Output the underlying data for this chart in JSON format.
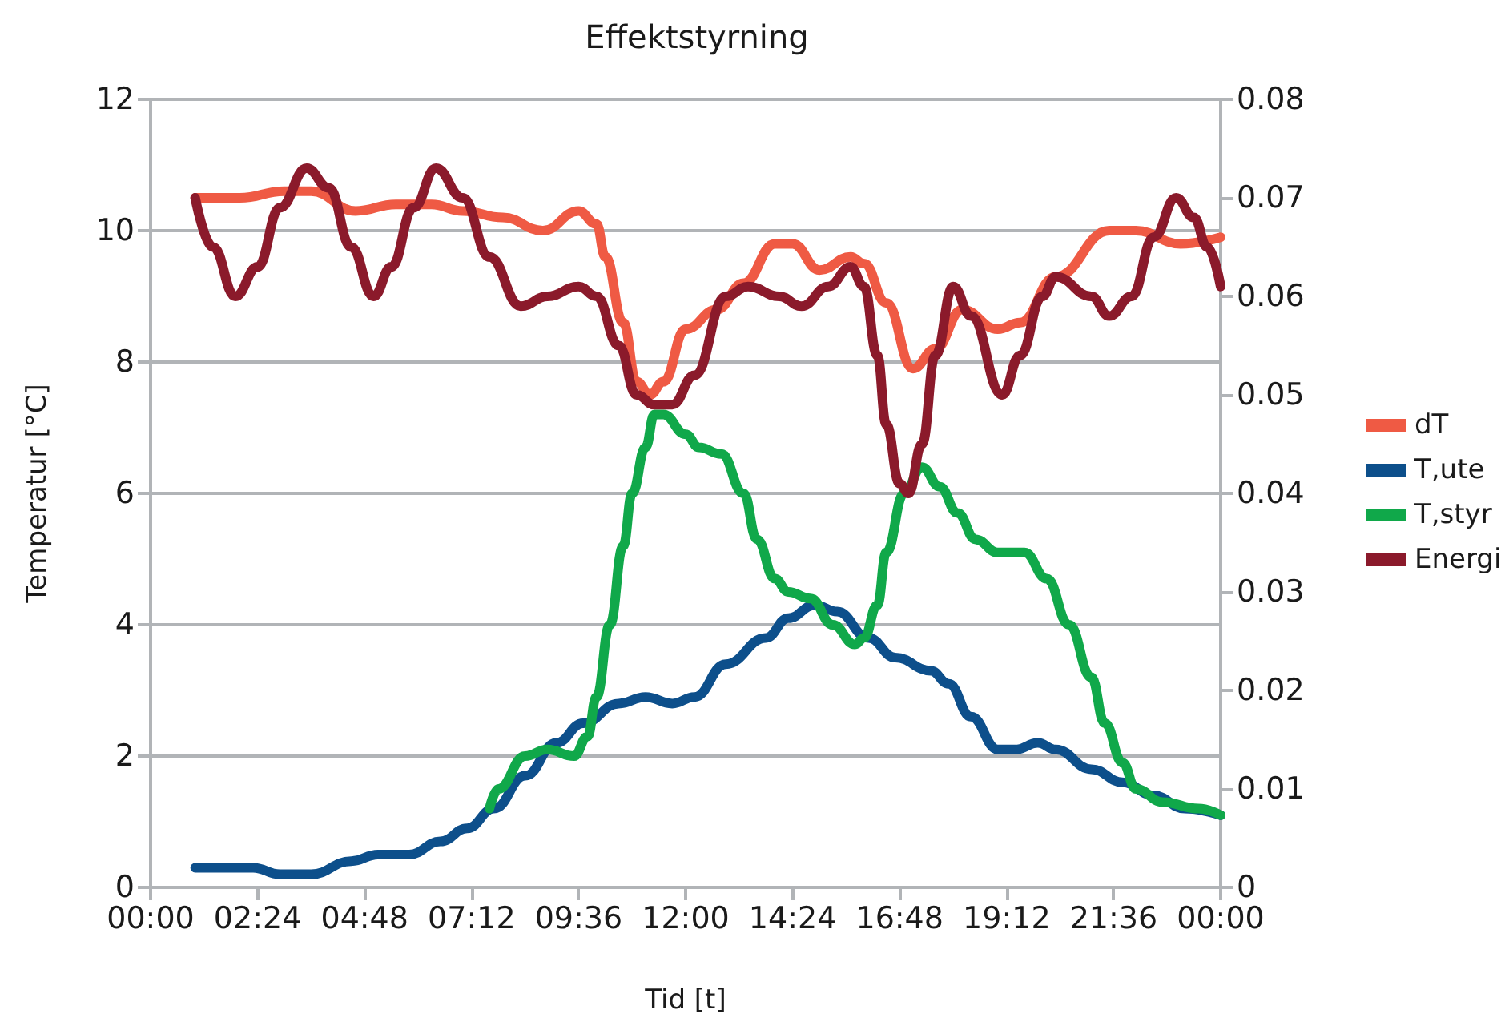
{
  "chart_data": {
    "type": "line",
    "title": "Effektstyrning",
    "xlabel": "Tid [t]",
    "ylabel": "Temperatur [°C]",
    "xlim": [
      0,
      24
    ],
    "xticks": [
      {
        "value": 0,
        "label": "00:00"
      },
      {
        "value": 2.4,
        "label": "02:24"
      },
      {
        "value": 4.8,
        "label": "04:48"
      },
      {
        "value": 7.2,
        "label": "07:12"
      },
      {
        "value": 9.6,
        "label": "09:36"
      },
      {
        "value": 12,
        "label": "12:00"
      },
      {
        "value": 14.4,
        "label": "14:24"
      },
      {
        "value": 16.8,
        "label": "16:48"
      },
      {
        "value": 19.2,
        "label": "19:12"
      },
      {
        "value": 21.6,
        "label": "21:36"
      },
      {
        "value": 24,
        "label": "00:00"
      }
    ],
    "ylim": [
      0,
      12
    ],
    "yticks": [
      0,
      2,
      4,
      6,
      8,
      10,
      12
    ],
    "y2lim": [
      0,
      0.08
    ],
    "y2ticks": [
      0,
      0.01,
      0.02,
      0.03,
      0.04,
      0.05,
      0.06,
      0.07,
      0.08
    ],
    "grid": "y",
    "legend": "right",
    "marker": "none",
    "line_style": "solid",
    "series": [
      {
        "name": "dT",
        "color": "#ef5a44",
        "x": [
          1.0,
          2.0,
          3.0,
          3.6,
          4.6,
          5.5,
          6.3,
          7.0,
          7.9,
          8.8,
          9.6,
          10.0,
          10.2,
          10.6,
          10.9,
          11.2,
          11.5,
          12.0,
          12.7,
          13.3,
          14.0,
          14.4,
          15.0,
          15.7,
          16.0,
          16.5,
          17.1,
          17.6,
          18.2,
          19.0,
          19.5,
          20.3,
          21.5,
          22.1,
          23.1,
          24.0
        ],
        "values": [
          10.5,
          10.5,
          10.6,
          10.6,
          10.3,
          10.4,
          10.4,
          10.3,
          10.2,
          10.0,
          10.3,
          10.1,
          9.6,
          8.6,
          7.7,
          7.5,
          7.7,
          8.5,
          8.8,
          9.2,
          9.8,
          9.8,
          9.4,
          9.6,
          9.5,
          8.9,
          7.9,
          8.2,
          8.8,
          8.5,
          8.6,
          9.3,
          10.0,
          10.0,
          9.8,
          9.9
        ]
      },
      {
        "name": "T,ute",
        "color": "#0d4f8b",
        "x": [
          1.0,
          2.3,
          2.9,
          3.6,
          4.5,
          5.1,
          5.8,
          6.5,
          7.1,
          7.7,
          8.4,
          9.1,
          9.7,
          10.5,
          11.1,
          11.7,
          12.2,
          12.9,
          13.8,
          14.3,
          14.9,
          15.4,
          16.1,
          16.7,
          17.5,
          17.9,
          18.4,
          19.0,
          19.4,
          19.9,
          20.3,
          21.1,
          21.8,
          22.5,
          23.2,
          24.0
        ],
        "values": [
          0.3,
          0.3,
          0.2,
          0.2,
          0.4,
          0.5,
          0.5,
          0.7,
          0.9,
          1.2,
          1.7,
          2.2,
          2.5,
          2.8,
          2.9,
          2.8,
          2.9,
          3.4,
          3.8,
          4.1,
          4.3,
          4.2,
          3.8,
          3.5,
          3.3,
          3.1,
          2.6,
          2.1,
          2.1,
          2.2,
          2.1,
          1.8,
          1.6,
          1.4,
          1.2,
          1.1
        ]
      },
      {
        "name": "T,styr",
        "color": "#10a84a",
        "x": [
          7.6,
          7.8,
          8.4,
          8.9,
          9.5,
          9.8,
          10.0,
          10.3,
          10.6,
          10.8,
          11.1,
          11.3,
          11.5,
          12.0,
          12.3,
          12.8,
          13.3,
          13.6,
          14.0,
          14.3,
          14.8,
          15.3,
          15.8,
          16.0,
          16.3,
          16.5,
          16.9,
          17.3,
          17.7,
          18.1,
          18.5,
          19.0,
          19.6,
          20.1,
          20.6,
          21.1,
          21.4,
          21.8,
          22.1,
          22.7,
          23.5,
          24.0
        ],
        "values": [
          1.2,
          1.5,
          2.0,
          2.1,
          2.0,
          2.3,
          2.9,
          4.0,
          5.2,
          6.0,
          6.7,
          7.2,
          7.2,
          6.9,
          6.7,
          6.6,
          6.0,
          5.3,
          4.7,
          4.5,
          4.4,
          4.0,
          3.7,
          3.8,
          4.3,
          5.1,
          6.0,
          6.4,
          6.1,
          5.7,
          5.3,
          5.1,
          5.1,
          4.7,
          4.0,
          3.2,
          2.5,
          1.9,
          1.5,
          1.3,
          1.2,
          1.1
        ]
      },
      {
        "name": "Energi",
        "color": "#8b1a2b",
        "axis": "y2",
        "x": [
          1.0,
          1.4,
          1.9,
          2.4,
          2.9,
          3.5,
          4.0,
          4.5,
          5.0,
          5.4,
          5.9,
          6.4,
          7.0,
          7.6,
          8.3,
          8.9,
          9.6,
          10.0,
          10.5,
          10.9,
          11.3,
          11.7,
          12.2,
          12.9,
          13.4,
          14.1,
          14.6,
          15.2,
          15.7,
          16.0,
          16.3,
          16.5,
          16.8,
          17.0,
          17.3,
          17.6,
          18.0,
          18.4,
          19.1,
          19.5,
          20.0,
          20.3,
          21.1,
          21.5,
          22.0,
          22.5,
          23.0,
          23.4,
          23.7,
          24.0
        ],
        "values": [
          0.07,
          0.065,
          0.06,
          0.063,
          0.069,
          0.073,
          0.071,
          0.065,
          0.06,
          0.063,
          0.069,
          0.073,
          0.07,
          0.064,
          0.059,
          0.06,
          0.061,
          0.06,
          0.055,
          0.05,
          0.049,
          0.049,
          0.052,
          0.06,
          0.061,
          0.06,
          0.059,
          0.061,
          0.063,
          0.061,
          0.054,
          0.047,
          0.041,
          0.04,
          0.045,
          0.054,
          0.061,
          0.058,
          0.05,
          0.054,
          0.06,
          0.062,
          0.06,
          0.058,
          0.06,
          0.066,
          0.07,
          0.068,
          0.065,
          0.061
        ]
      }
    ]
  }
}
